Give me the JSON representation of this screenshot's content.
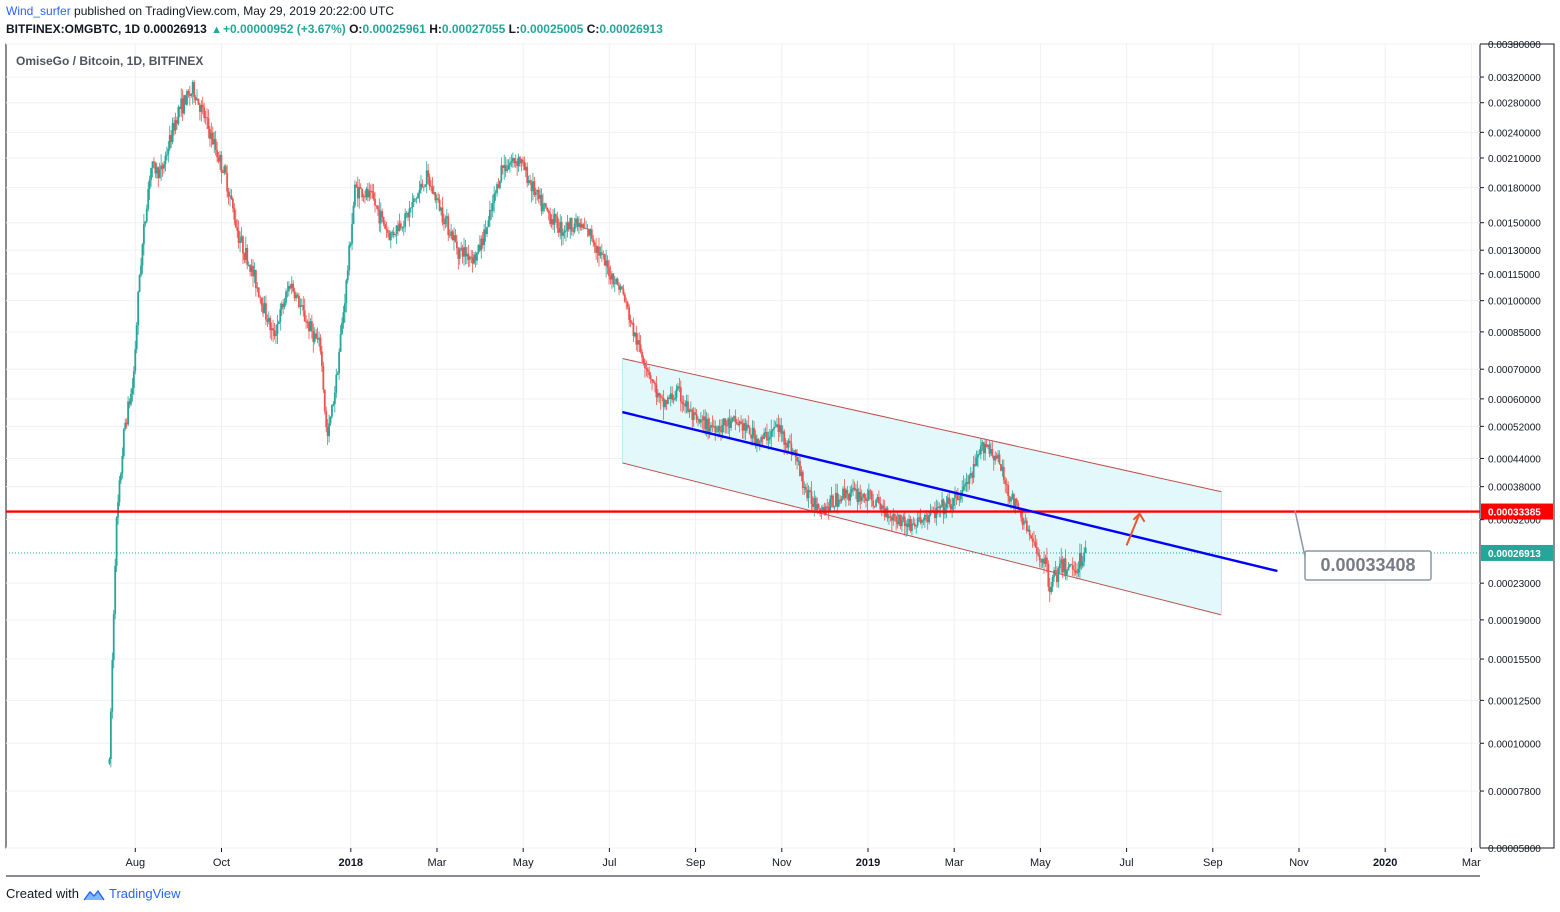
{
  "header": {
    "author": "Wind_surfer",
    "published_text": "published on TradingView.com, May 29, 2019 20:22:00 UTC",
    "symbol": "BITFINEX:OMGBTC, 1D",
    "last": "0.00026913",
    "change": "+0.00000952 (+3.67%)",
    "o_label": "O:",
    "o_value": "0.00025961",
    "h_label": "H:",
    "h_value": "0.00027055",
    "l_label": "L:",
    "l_value": "0.00025005",
    "c_label": "C:",
    "c_value": "0.00026913"
  },
  "footer": {
    "created_with": "Created with",
    "brand": "TradingView"
  },
  "colors": {
    "up": "#26a69a",
    "down": "#ef5350",
    "resistance": "#ff0000",
    "trend": "#0000ff",
    "channel_fill": "#e0f7fa",
    "channel_border": "#c0504d",
    "current_price_bg": "#26a69a",
    "grid": "#eef0f3",
    "arrow": "#e8582a"
  },
  "chart_data": {
    "type": "candlestick",
    "title": "OmiseGo / Bitcoin, 1D, BITFINEX",
    "y_scale": "log",
    "ylim": [
      5.8e-05,
      0.0038
    ],
    "y_ticks": [
      "0.00380000",
      "0.00320000",
      "0.00280000",
      "0.00240000",
      "0.00210000",
      "0.00180000",
      "0.00150000",
      "0.00130000",
      "0.00115000",
      "0.00100000",
      "0.00085000",
      "0.00070000",
      "0.00060000",
      "0.00052000",
      "0.00044000",
      "0.00038000",
      "0.00032000",
      "0.00023000",
      "0.00019000",
      "0.00015500",
      "0.00012500",
      "0.00010000",
      "0.00007800",
      "0.00005800"
    ],
    "x_ticks": [
      {
        "label": "Aug",
        "t": 3.0,
        "bold": false
      },
      {
        "label": "Oct",
        "t": 5.0,
        "bold": false
      },
      {
        "label": "2018",
        "t": 8.0,
        "bold": true
      },
      {
        "label": "Mar",
        "t": 10.0,
        "bold": false
      },
      {
        "label": "May",
        "t": 12.0,
        "bold": false
      },
      {
        "label": "Jul",
        "t": 14.0,
        "bold": false
      },
      {
        "label": "Sep",
        "t": 16.0,
        "bold": false
      },
      {
        "label": "Nov",
        "t": 18.0,
        "bold": false
      },
      {
        "label": "2019",
        "t": 20.0,
        "bold": true
      },
      {
        "label": "Mar",
        "t": 22.0,
        "bold": false
      },
      {
        "label": "May",
        "t": 24.0,
        "bold": false
      },
      {
        "label": "Jul",
        "t": 26.0,
        "bold": false
      },
      {
        "label": "Sep",
        "t": 28.0,
        "bold": false
      },
      {
        "label": "Nov",
        "t": 30.0,
        "bold": false
      },
      {
        "label": "2020",
        "t": 32.0,
        "bold": true
      },
      {
        "label": "Mar",
        "t": 34.0,
        "bold": false
      }
    ],
    "x_domain": [
      0,
      34.2
    ],
    "anchors": [
      {
        "t": 2.4,
        "p": 9e-05
      },
      {
        "t": 2.55,
        "p": 0.0003
      },
      {
        "t": 2.75,
        "p": 0.00052
      },
      {
        "t": 2.95,
        "p": 0.00065
      },
      {
        "t": 3.1,
        "p": 0.00115
      },
      {
        "t": 3.35,
        "p": 0.002
      },
      {
        "t": 3.6,
        "p": 0.00195
      },
      {
        "t": 4.0,
        "p": 0.0027
      },
      {
        "t": 4.35,
        "p": 0.003
      },
      {
        "t": 4.6,
        "p": 0.0026
      },
      {
        "t": 5.1,
        "p": 0.0019
      },
      {
        "t": 5.4,
        "p": 0.0014
      },
      {
        "t": 5.8,
        "p": 0.0011
      },
      {
        "t": 6.2,
        "p": 0.00083
      },
      {
        "t": 6.6,
        "p": 0.0011
      },
      {
        "t": 6.9,
        "p": 0.00093
      },
      {
        "t": 7.3,
        "p": 0.00078
      },
      {
        "t": 7.45,
        "p": 0.00048
      },
      {
        "t": 7.65,
        "p": 0.00065
      },
      {
        "t": 7.9,
        "p": 0.0011
      },
      {
        "t": 8.1,
        "p": 0.0018
      },
      {
        "t": 8.5,
        "p": 0.0017
      },
      {
        "t": 8.9,
        "p": 0.0014
      },
      {
        "t": 9.3,
        "p": 0.00155
      },
      {
        "t": 9.75,
        "p": 0.0019
      },
      {
        "t": 10.1,
        "p": 0.0016
      },
      {
        "t": 10.5,
        "p": 0.0013
      },
      {
        "t": 10.9,
        "p": 0.00125
      },
      {
        "t": 11.2,
        "p": 0.0015
      },
      {
        "t": 11.5,
        "p": 0.002
      },
      {
        "t": 11.9,
        "p": 0.0021
      },
      {
        "t": 12.4,
        "p": 0.00165
      },
      {
        "t": 12.9,
        "p": 0.00145
      },
      {
        "t": 13.2,
        "p": 0.0015
      },
      {
        "t": 13.6,
        "p": 0.0014
      },
      {
        "t": 13.9,
        "p": 0.0012
      },
      {
        "t": 14.3,
        "p": 0.00105
      },
      {
        "t": 14.6,
        "p": 0.00082
      },
      {
        "t": 14.9,
        "p": 0.0007
      },
      {
        "t": 15.2,
        "p": 0.00058
      },
      {
        "t": 15.6,
        "p": 0.00062
      },
      {
        "t": 16.0,
        "p": 0.00053
      },
      {
        "t": 16.5,
        "p": 0.00052
      },
      {
        "t": 17.0,
        "p": 0.00053
      },
      {
        "t": 17.5,
        "p": 0.00048
      },
      {
        "t": 17.9,
        "p": 0.00052
      },
      {
        "t": 18.3,
        "p": 0.00045
      },
      {
        "t": 18.6,
        "p": 0.00036
      },
      {
        "t": 19.0,
        "p": 0.00034
      },
      {
        "t": 19.5,
        "p": 0.00037
      },
      {
        "t": 20.0,
        "p": 0.00036
      },
      {
        "t": 20.5,
        "p": 0.00033
      },
      {
        "t": 21.0,
        "p": 0.00031
      },
      {
        "t": 21.5,
        "p": 0.00033
      },
      {
        "t": 22.0,
        "p": 0.00035
      },
      {
        "t": 22.4,
        "p": 0.0004
      },
      {
        "t": 22.7,
        "p": 0.00048
      },
      {
        "t": 23.0,
        "p": 0.00044
      },
      {
        "t": 23.3,
        "p": 0.00036
      },
      {
        "t": 23.6,
        "p": 0.00032
      },
      {
        "t": 23.9,
        "p": 0.00027
      },
      {
        "t": 24.1,
        "p": 0.00026
      },
      {
        "t": 24.2,
        "p": 0.00023
      },
      {
        "t": 24.5,
        "p": 0.00025
      },
      {
        "t": 24.8,
        "p": 0.00025
      },
      {
        "t": 25.05,
        "p": 0.000269
      }
    ],
    "resistance_level": {
      "price": 0.00033385,
      "label": "0.00033385"
    },
    "current_price": {
      "price": 0.00026913,
      "label": "0.00026913"
    },
    "callout": {
      "label": "0.00033408"
    },
    "channel": {
      "t_start": 14.3,
      "t_end": 28.2,
      "upper_start": 0.00074,
      "upper_end": 0.00037,
      "lower_start": 0.00043,
      "lower_end": 0.000195
    },
    "trend_line": {
      "t_start": 14.3,
      "p_start": 0.00056,
      "t_end": 29.5,
      "p_end": 0.000245
    },
    "arrow": {
      "t_from": 26.0,
      "p_from": 0.00028,
      "t_to": 26.3,
      "p_to": 0.00033
    }
  }
}
